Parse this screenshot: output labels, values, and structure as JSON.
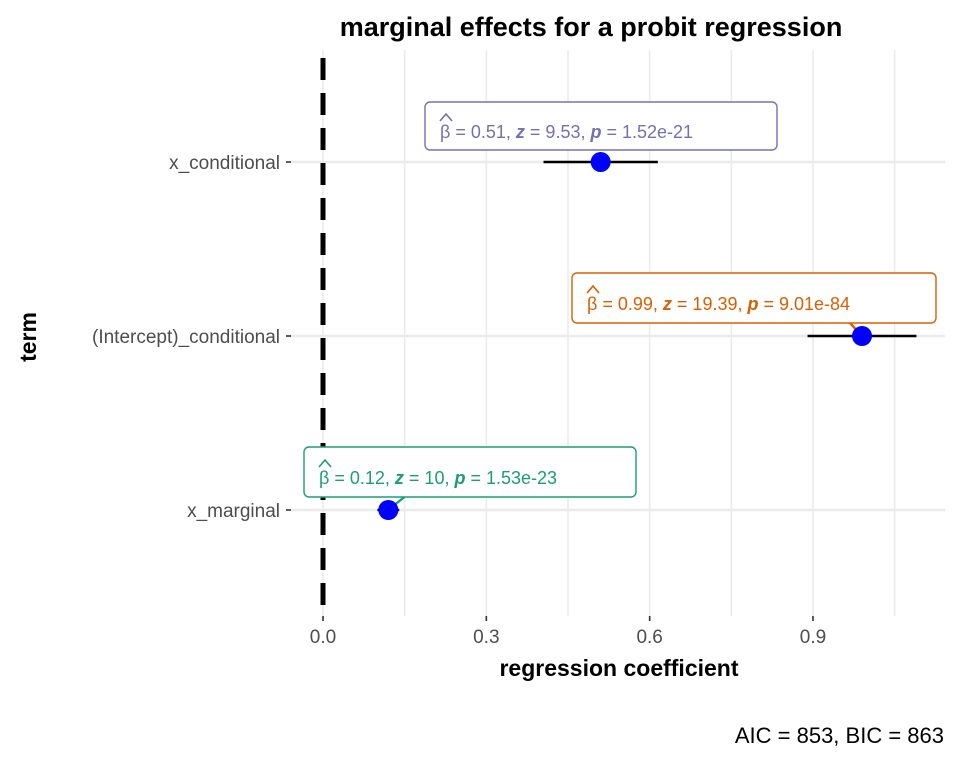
{
  "chart_data": {
    "type": "scatter",
    "title": "marginal effects for a probit regression",
    "xlabel": "regression coefficient",
    "ylabel": "term",
    "caption": "AIC = 853, BIC = 863",
    "xlim": [
      -0.03,
      1.15
    ],
    "xticks": [
      "0.0",
      "0.3",
      "0.6",
      "0.9"
    ],
    "xtick_values": [
      0.0,
      0.3,
      0.6,
      0.9
    ],
    "reference_line": 0,
    "grid": true,
    "point_color": "#0000ff",
    "terms": [
      {
        "term": "x_conditional",
        "estimate": 0.51,
        "ci_low": 0.405,
        "ci_high": 0.615,
        "label": {
          "beta_sym": "β",
          "beta": "0.51",
          "z": "9.53",
          "p": "1.52e-21"
        },
        "color": "#7570b3"
      },
      {
        "term": "(Intercept)_conditional",
        "estimate": 0.99,
        "ci_low": 0.89,
        "ci_high": 1.09,
        "label": {
          "beta_sym": "β",
          "beta": "0.99",
          "z": "19.39",
          "p": "9.01e-84"
        },
        "color": "#d95f02"
      },
      {
        "term": "x_marginal",
        "estimate": 0.12,
        "ci_low": 0.1,
        "ci_high": 0.14,
        "label": {
          "beta_sym": "β",
          "beta": "0.12",
          "z": "10",
          "p": "1.53e-23"
        },
        "color": "#1b9e77"
      }
    ]
  }
}
